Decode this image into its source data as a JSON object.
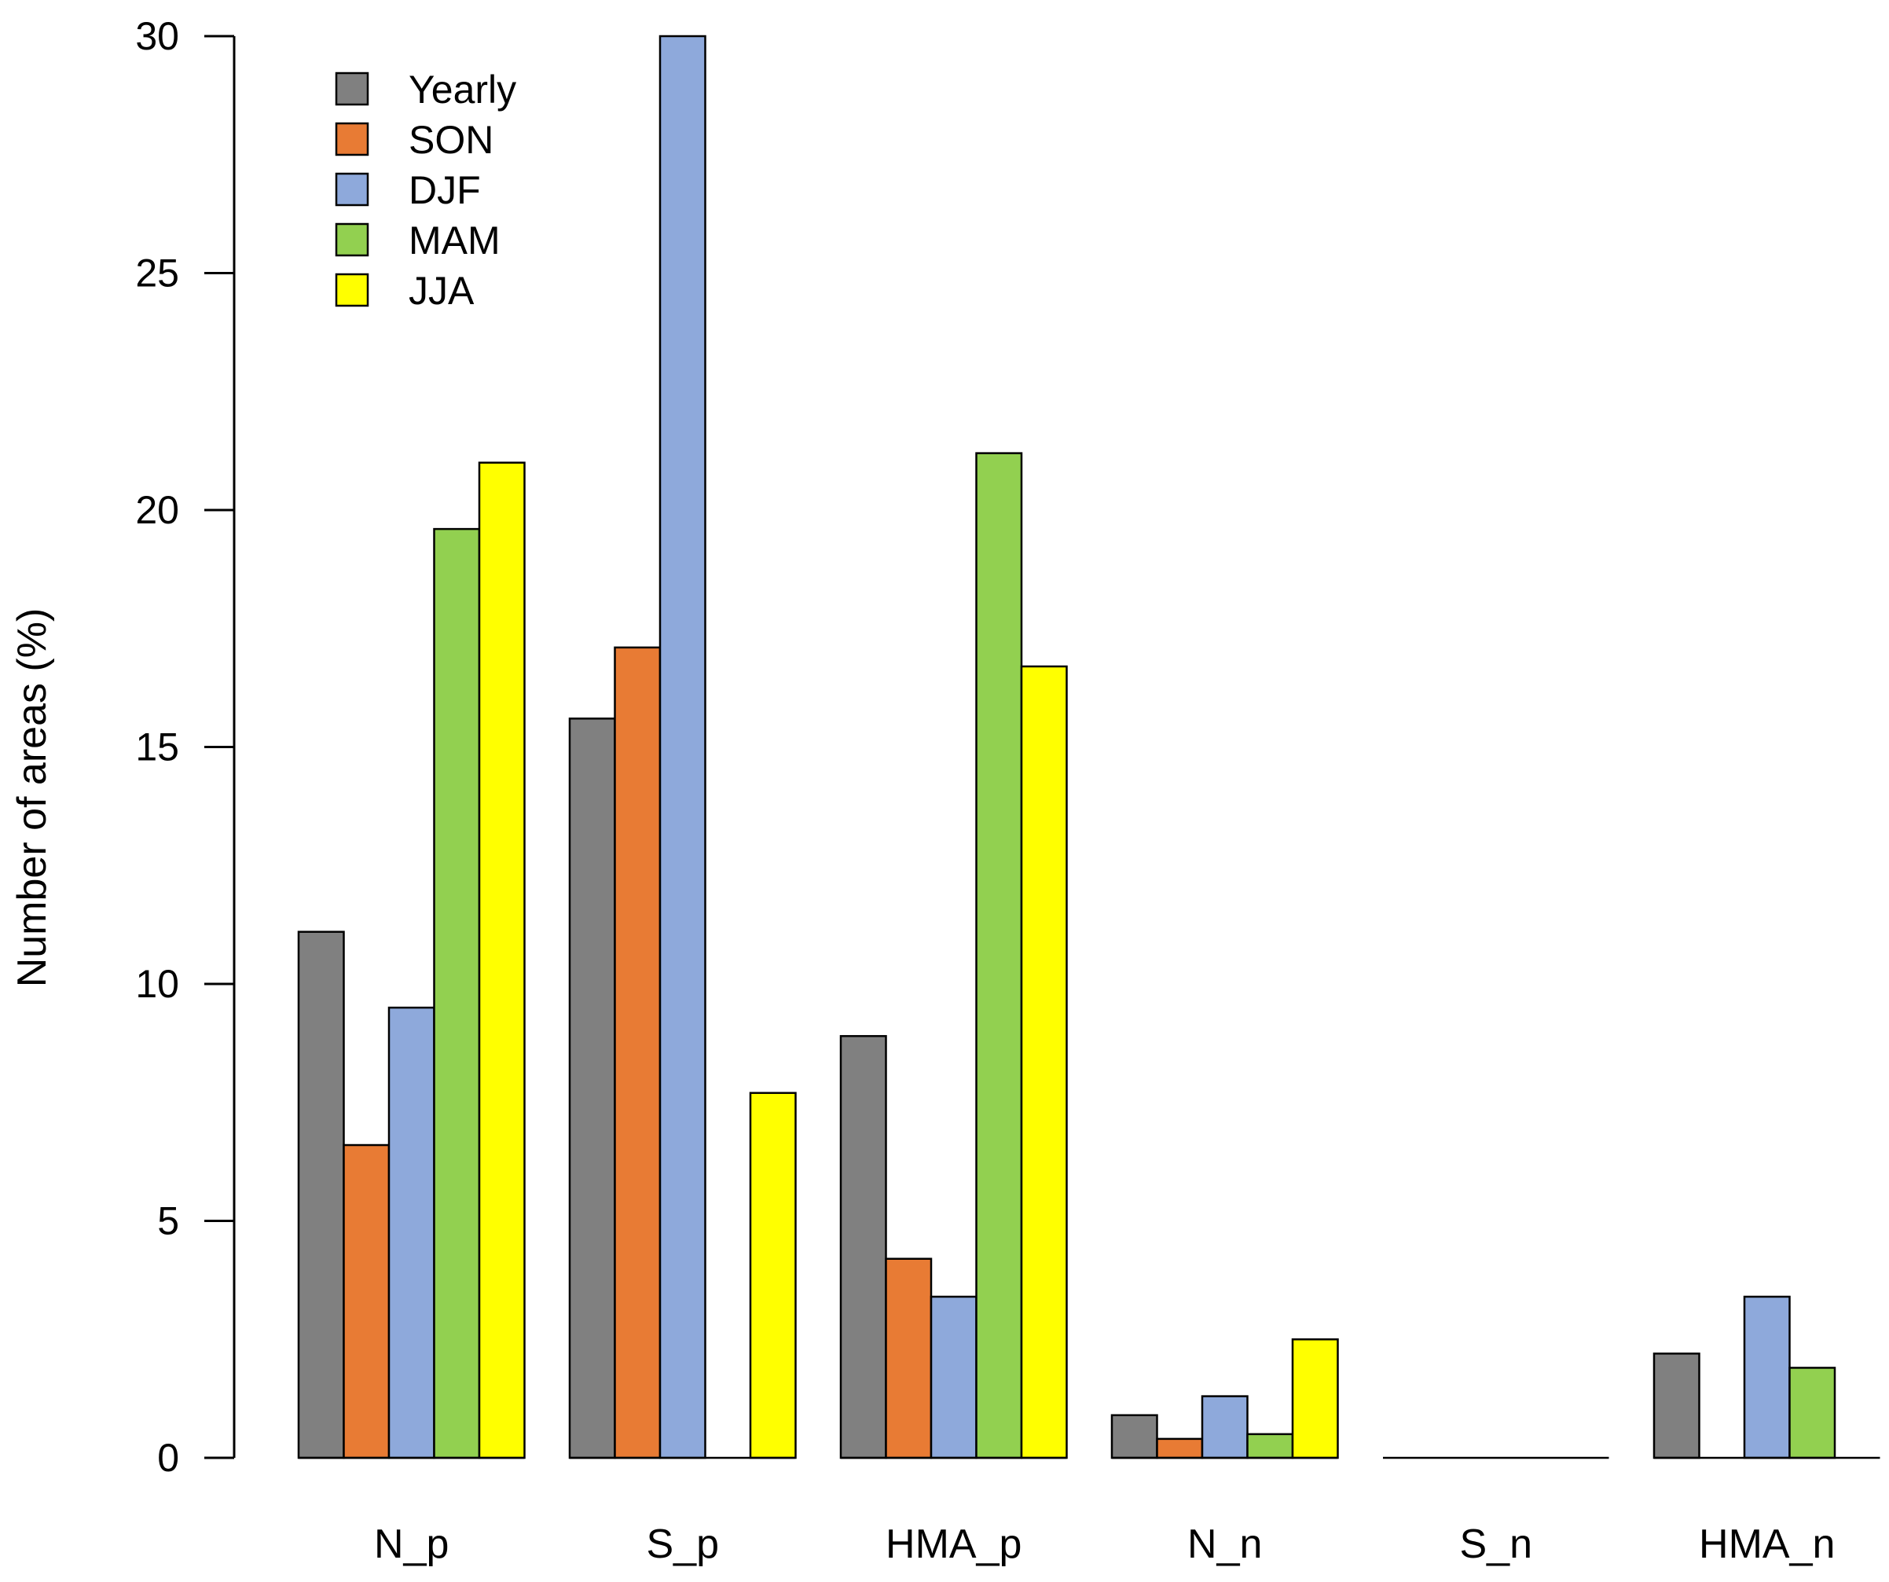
{
  "chart_data": {
    "type": "bar",
    "title": "",
    "xlabel": "",
    "ylabel": "Number of areas (%)",
    "ylim": [
      0,
      30
    ],
    "yticks": [
      0,
      5,
      10,
      15,
      20,
      25,
      30
    ],
    "grid": false,
    "legend_position": "top-left",
    "categories": [
      "N_p",
      "S_p",
      "HMA_p",
      "N_n",
      "S_n",
      "HMA_n"
    ],
    "series": [
      {
        "name": "Yearly",
        "color": "#808080",
        "values": [
          11.1,
          15.6,
          8.9,
          0.9,
          0,
          2.2
        ]
      },
      {
        "name": "SON",
        "color": "#E87B34",
        "values": [
          6.6,
          17.1,
          4.2,
          0.4,
          0,
          0
        ]
      },
      {
        "name": "DJF",
        "color": "#8EA9DB",
        "values": [
          9.5,
          30.0,
          3.4,
          1.3,
          0,
          3.4
        ]
      },
      {
        "name": "MAM",
        "color": "#92D050",
        "values": [
          19.6,
          0,
          21.2,
          0.5,
          0,
          1.9
        ]
      },
      {
        "name": "JJA",
        "color": "#FFFF00",
        "values": [
          21.0,
          7.7,
          16.7,
          2.5,
          0,
          0
        ]
      }
    ]
  }
}
